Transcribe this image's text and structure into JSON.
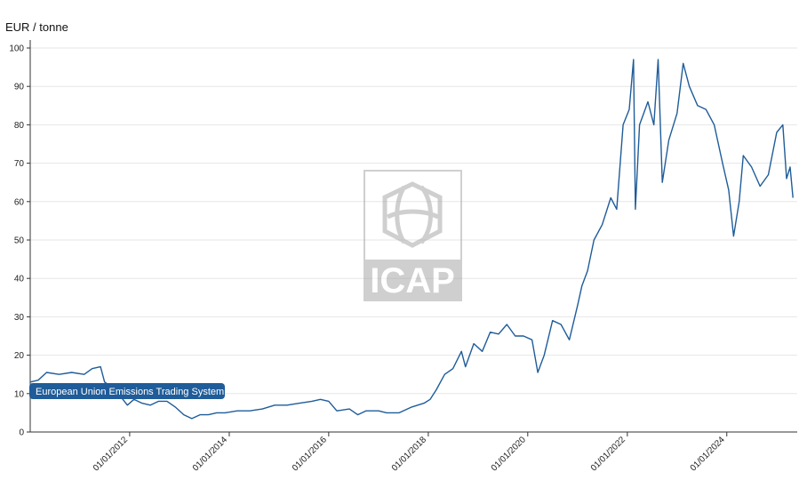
{
  "chart_data": {
    "type": "line",
    "title": "",
    "ylabel": "EUR / tonne",
    "xlabel": "",
    "ylim": [
      0,
      100
    ],
    "xlim": [
      "2010-01-01",
      "2025-06-01"
    ],
    "y_ticks": [
      0,
      10,
      20,
      30,
      40,
      50,
      60,
      70,
      80,
      90,
      100
    ],
    "x_ticks": [
      "01/01/2012",
      "01/01/2014",
      "01/01/2016",
      "01/01/2018",
      "01/01/2020",
      "01/01/2022",
      "01/01/2024"
    ],
    "x_tick_dates": [
      "2012-01-01",
      "2014-01-01",
      "2016-01-01",
      "2018-01-01",
      "2020-01-01",
      "2022-01-01",
      "2024-01-01"
    ],
    "grid": "horizontal",
    "series": [
      {
        "name": "European Union Emissions Trading System",
        "color": "#1f5c99",
        "points": [
          [
            "2010-01-01",
            13.0
          ],
          [
            "2010-03-01",
            13.5
          ],
          [
            "2010-05-01",
            15.5
          ],
          [
            "2010-08-01",
            15.0
          ],
          [
            "2010-11-01",
            15.5
          ],
          [
            "2011-02-01",
            15.0
          ],
          [
            "2011-04-01",
            16.5
          ],
          [
            "2011-06-01",
            17.0
          ],
          [
            "2011-07-01",
            13.0
          ],
          [
            "2011-09-01",
            11.5
          ],
          [
            "2011-11-01",
            9.0
          ],
          [
            "2011-12-15",
            7.0
          ],
          [
            "2012-02-01",
            8.5
          ],
          [
            "2012-04-01",
            7.5
          ],
          [
            "2012-06-01",
            7.0
          ],
          [
            "2012-08-01",
            8.0
          ],
          [
            "2012-10-01",
            8.0
          ],
          [
            "2012-12-01",
            6.5
          ],
          [
            "2013-02-01",
            4.5
          ],
          [
            "2013-04-01",
            3.5
          ],
          [
            "2013-06-01",
            4.5
          ],
          [
            "2013-08-01",
            4.5
          ],
          [
            "2013-10-01",
            5.0
          ],
          [
            "2013-12-01",
            5.0
          ],
          [
            "2014-03-01",
            5.5
          ],
          [
            "2014-06-01",
            5.5
          ],
          [
            "2014-09-01",
            6.0
          ],
          [
            "2014-12-01",
            7.0
          ],
          [
            "2015-03-01",
            7.0
          ],
          [
            "2015-06-01",
            7.5
          ],
          [
            "2015-09-01",
            8.0
          ],
          [
            "2015-11-01",
            8.5
          ],
          [
            "2016-01-01",
            8.0
          ],
          [
            "2016-03-01",
            5.5
          ],
          [
            "2016-06-01",
            6.0
          ],
          [
            "2016-08-01",
            4.5
          ],
          [
            "2016-10-01",
            5.5
          ],
          [
            "2017-01-01",
            5.5
          ],
          [
            "2017-03-01",
            5.0
          ],
          [
            "2017-06-01",
            5.0
          ],
          [
            "2017-09-01",
            6.5
          ],
          [
            "2017-12-01",
            7.5
          ],
          [
            "2018-01-15",
            8.5
          ],
          [
            "2018-03-01",
            11.0
          ],
          [
            "2018-05-01",
            15.0
          ],
          [
            "2018-07-01",
            16.5
          ],
          [
            "2018-09-01",
            21.0
          ],
          [
            "2018-10-01",
            17.0
          ],
          [
            "2018-12-01",
            23.0
          ],
          [
            "2019-02-01",
            21.0
          ],
          [
            "2019-04-01",
            26.0
          ],
          [
            "2019-06-01",
            25.5
          ],
          [
            "2019-08-01",
            28.0
          ],
          [
            "2019-10-01",
            25.0
          ],
          [
            "2019-12-01",
            25.0
          ],
          [
            "2020-02-01",
            24.0
          ],
          [
            "2020-03-15",
            15.5
          ],
          [
            "2020-05-01",
            20.0
          ],
          [
            "2020-07-01",
            29.0
          ],
          [
            "2020-09-01",
            28.0
          ],
          [
            "2020-11-01",
            24.0
          ],
          [
            "2021-01-01",
            33.0
          ],
          [
            "2021-02-01",
            38.0
          ],
          [
            "2021-03-15",
            42.0
          ],
          [
            "2021-05-01",
            50.0
          ],
          [
            "2021-07-01",
            54.0
          ],
          [
            "2021-09-01",
            61.0
          ],
          [
            "2021-10-15",
            58.0
          ],
          [
            "2021-12-01",
            80.0
          ],
          [
            "2022-01-15",
            84.0
          ],
          [
            "2022-02-15",
            97.0
          ],
          [
            "2022-03-01",
            58.0
          ],
          [
            "2022-04-01",
            80.0
          ],
          [
            "2022-06-01",
            86.0
          ],
          [
            "2022-07-15",
            80.0
          ],
          [
            "2022-08-15",
            97.0
          ],
          [
            "2022-09-15",
            65.0
          ],
          [
            "2022-11-01",
            76.0
          ],
          [
            "2023-01-01",
            83.0
          ],
          [
            "2023-02-15",
            96.0
          ],
          [
            "2023-04-01",
            90.0
          ],
          [
            "2023-06-01",
            85.0
          ],
          [
            "2023-08-01",
            84.0
          ],
          [
            "2023-10-01",
            80.0
          ],
          [
            "2023-12-01",
            70.0
          ],
          [
            "2024-01-15",
            63.0
          ],
          [
            "2024-02-20",
            51.0
          ],
          [
            "2024-04-01",
            60.0
          ],
          [
            "2024-05-01",
            72.0
          ],
          [
            "2024-07-01",
            69.0
          ],
          [
            "2024-09-01",
            64.0
          ],
          [
            "2024-11-01",
            67.0
          ],
          [
            "2025-01-01",
            78.0
          ],
          [
            "2025-02-15",
            80.0
          ],
          [
            "2025-03-15",
            66.0
          ],
          [
            "2025-04-10",
            69.0
          ],
          [
            "2025-05-01",
            61.0
          ]
        ]
      }
    ]
  },
  "watermark": {
    "text": "ICAP",
    "color": "#c8c8c8"
  }
}
